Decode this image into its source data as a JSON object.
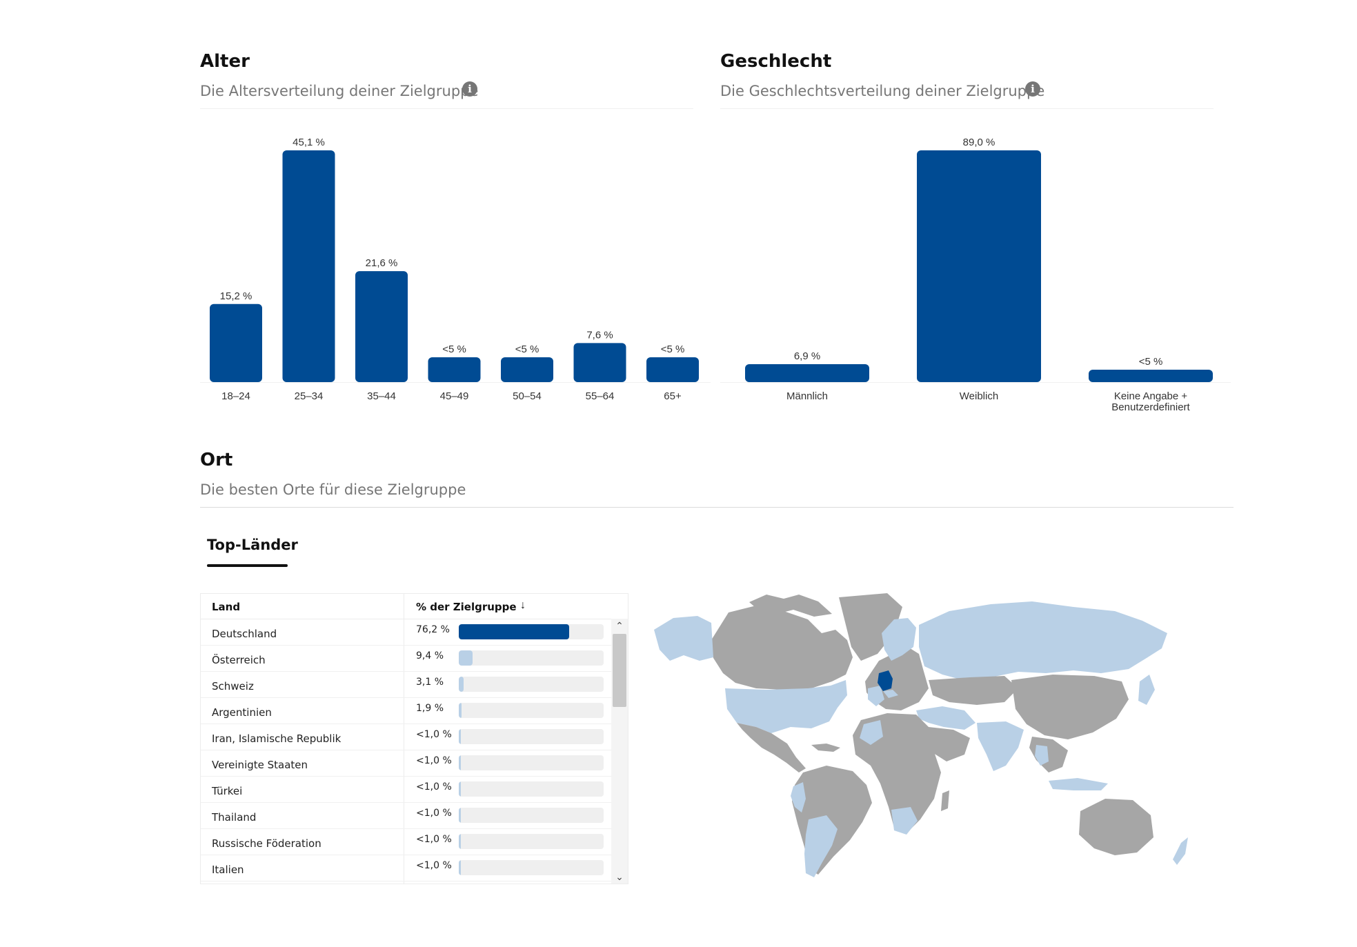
{
  "age": {
    "title": "Alter",
    "subtitle": "Die Altersverteilung deiner Zielgruppe",
    "info_icon": "info-icon"
  },
  "gender": {
    "title": "Geschlecht",
    "subtitle": "Die Geschlechtsverteilung deiner Zielgruppe",
    "info_icon": "info-icon"
  },
  "location": {
    "title": "Ort",
    "subtitle": "Die besten Orte für diese Zielgruppe",
    "tab_label": "Top-Länder",
    "table": {
      "col_country": "Land",
      "col_percent": "% der Zielgruppe",
      "sort_icon": "arrow-down-icon",
      "rows": [
        {
          "country": "Deutschland",
          "percent_label": "76,2 %",
          "value": 76.2
        },
        {
          "country": "Österreich",
          "percent_label": "9,4 %",
          "value": 9.4
        },
        {
          "country": "Schweiz",
          "percent_label": "3,1 %",
          "value": 3.1
        },
        {
          "country": "Argentinien",
          "percent_label": "1,9 %",
          "value": 1.9
        },
        {
          "country": "Iran, Islamische Republik",
          "percent_label": "<1,0 %",
          "value": 0.8
        },
        {
          "country": "Vereinigte Staaten",
          "percent_label": "<1,0 %",
          "value": 0.7
        },
        {
          "country": "Türkei",
          "percent_label": "<1,0 %",
          "value": 0.6
        },
        {
          "country": "Thailand",
          "percent_label": "<1,0 %",
          "value": 0.5
        },
        {
          "country": "Russische Föderation",
          "percent_label": "<1,0 %",
          "value": 0.5
        },
        {
          "country": "Italien",
          "percent_label": "<1,0 %",
          "value": 0.5
        }
      ]
    },
    "map": {
      "type": "world-choropleth",
      "highlight_top": "Deutschland",
      "colors": {
        "top": "#004b93",
        "audience": "#b9d0e6",
        "other": "#a6a6a6"
      }
    }
  },
  "colors": {
    "bar": "#004b93",
    "bar_light": "#b9d0e6",
    "track": "#efefef"
  },
  "chart_data": [
    {
      "type": "bar",
      "categories": [
        "18–24",
        "25–34",
        "35–44",
        "45–49",
        "50–54",
        "55–64",
        "65+"
      ],
      "values": [
        15.2,
        45.1,
        21.6,
        4.4,
        4.4,
        7.6,
        4.4
      ],
      "value_labels": [
        "15,2 %",
        "45,1 %",
        "21,6 %",
        "<5 %",
        "<5 %",
        "7,6 %",
        "<5 %"
      ],
      "ylim": [
        0,
        45.1
      ],
      "grid": false,
      "color": "#004b93"
    },
    {
      "type": "bar",
      "categories": [
        [
          "Männlich"
        ],
        [
          "Weiblich"
        ],
        [
          "Keine Angabe +",
          "Benutzerdefiniert"
        ]
      ],
      "values": [
        6.9,
        89.0,
        4.1
      ],
      "value_labels": [
        "6,9 %",
        "89,0 %",
        "<5 %"
      ],
      "ylim": [
        0,
        89.0
      ],
      "grid": false,
      "color": "#004b93"
    }
  ]
}
